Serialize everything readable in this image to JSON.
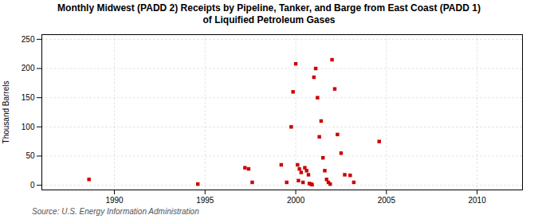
{
  "chart_data": {
    "type": "scatter",
    "title": "Monthly Midwest (PADD 2) Receipts by Pipeline, Tanker, and Barge from East Coast (PADD 1)\nof Liquified Petroleum Gases",
    "ylabel": "Thousand Barrels",
    "source": "Source: U.S. Energy Information Administration",
    "x": [
      1988.6,
      1994.6,
      1997.2,
      1997.4,
      1997.6,
      1999.2,
      1999.5,
      1999.75,
      1999.85,
      2000.0,
      2000.1,
      2000.15,
      2000.2,
      2000.3,
      2000.4,
      2000.5,
      2000.6,
      2000.7,
      2000.75,
      2000.85,
      2000.9,
      2001.0,
      2001.1,
      2001.2,
      2001.3,
      2001.4,
      2001.5,
      2001.6,
      2001.7,
      2001.8,
      2001.9,
      2002.0,
      2002.15,
      2002.3,
      2002.5,
      2002.7,
      2003.0,
      2003.2,
      2004.6
    ],
    "values": [
      10,
      2,
      30,
      28,
      5,
      35,
      5,
      100,
      160,
      208,
      35,
      8,
      28,
      22,
      5,
      30,
      25,
      18,
      3,
      2,
      1,
      185,
      200,
      150,
      83,
      110,
      47,
      25,
      10,
      5,
      2,
      215,
      165,
      87,
      55,
      18,
      17,
      5,
      75
    ],
    "color": "#cc0000",
    "marker": "square",
    "xlim": [
      1986.0,
      2012.5
    ],
    "ylim": [
      -8,
      258
    ],
    "xticks": [
      1990,
      1995,
      2000,
      2005,
      2010
    ],
    "yticks": [
      0,
      50,
      100,
      150,
      200,
      250
    ],
    "grid": true
  }
}
